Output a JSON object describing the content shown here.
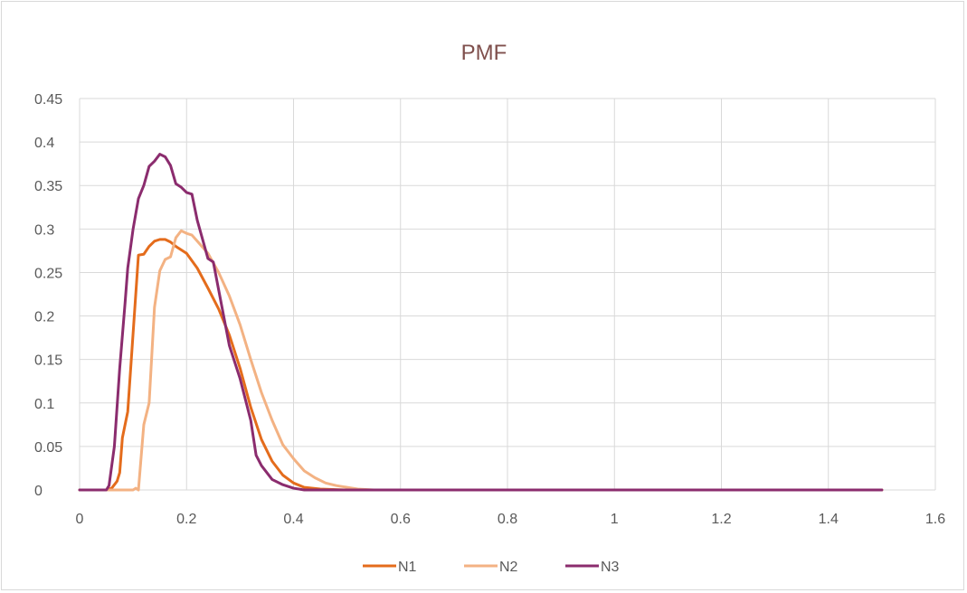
{
  "chart_data": {
    "type": "line",
    "title": "PMF",
    "xlabel": "",
    "ylabel": "",
    "xlim": [
      0,
      1.6
    ],
    "ylim": [
      0,
      0.45
    ],
    "x_ticks": [
      "0",
      "0.2",
      "0.4",
      "0.6",
      "0.8",
      "1",
      "1.2",
      "1.4",
      "1.6"
    ],
    "y_ticks": [
      "0",
      "0.05",
      "0.1",
      "0.15",
      "0.2",
      "0.25",
      "0.3",
      "0.35",
      "0.4",
      "0.45"
    ],
    "grid": true,
    "legend_position": "bottom",
    "series": [
      {
        "name": "N1",
        "color": "#e46c1c",
        "points": [
          [
            0,
            0
          ],
          [
            0.05,
            0
          ],
          [
            0.06,
            0.002
          ],
          [
            0.07,
            0.01
          ],
          [
            0.075,
            0.02
          ],
          [
            0.08,
            0.06
          ],
          [
            0.09,
            0.09
          ],
          [
            0.1,
            0.18
          ],
          [
            0.11,
            0.27
          ],
          [
            0.12,
            0.271
          ],
          [
            0.13,
            0.28
          ],
          [
            0.14,
            0.286
          ],
          [
            0.15,
            0.288
          ],
          [
            0.16,
            0.288
          ],
          [
            0.17,
            0.285
          ],
          [
            0.18,
            0.28
          ],
          [
            0.2,
            0.272
          ],
          [
            0.22,
            0.255
          ],
          [
            0.24,
            0.232
          ],
          [
            0.26,
            0.208
          ],
          [
            0.28,
            0.178
          ],
          [
            0.3,
            0.14
          ],
          [
            0.32,
            0.095
          ],
          [
            0.34,
            0.058
          ],
          [
            0.36,
            0.033
          ],
          [
            0.38,
            0.017
          ],
          [
            0.4,
            0.008
          ],
          [
            0.42,
            0.003
          ],
          [
            0.45,
            0.001
          ],
          [
            0.5,
            0
          ],
          [
            0.6,
            0
          ],
          [
            0.8,
            0
          ],
          [
            1.0,
            0
          ],
          [
            1.2,
            0
          ],
          [
            1.4,
            0
          ],
          [
            1.5,
            0
          ]
        ]
      },
      {
        "name": "N2",
        "color": "#f3b283",
        "points": [
          [
            0,
            0
          ],
          [
            0.1,
            0
          ],
          [
            0.105,
            0.002
          ],
          [
            0.11,
            0
          ],
          [
            0.12,
            0.075
          ],
          [
            0.13,
            0.1
          ],
          [
            0.14,
            0.21
          ],
          [
            0.15,
            0.252
          ],
          [
            0.16,
            0.265
          ],
          [
            0.17,
            0.268
          ],
          [
            0.18,
            0.29
          ],
          [
            0.19,
            0.298
          ],
          [
            0.2,
            0.295
          ],
          [
            0.21,
            0.293
          ],
          [
            0.22,
            0.286
          ],
          [
            0.24,
            0.272
          ],
          [
            0.26,
            0.25
          ],
          [
            0.28,
            0.223
          ],
          [
            0.3,
            0.19
          ],
          [
            0.32,
            0.15
          ],
          [
            0.34,
            0.112
          ],
          [
            0.36,
            0.08
          ],
          [
            0.38,
            0.052
          ],
          [
            0.4,
            0.036
          ],
          [
            0.42,
            0.022
          ],
          [
            0.44,
            0.014
          ],
          [
            0.46,
            0.008
          ],
          [
            0.48,
            0.005
          ],
          [
            0.5,
            0.003
          ],
          [
            0.52,
            0.001
          ],
          [
            0.55,
            0
          ],
          [
            0.6,
            0
          ],
          [
            0.8,
            0
          ],
          [
            1.0,
            0
          ],
          [
            1.2,
            0
          ],
          [
            1.4,
            0
          ],
          [
            1.5,
            0
          ]
        ]
      },
      {
        "name": "N3",
        "color": "#8b2c6e",
        "points": [
          [
            0,
            0
          ],
          [
            0.05,
            0
          ],
          [
            0.055,
            0.005
          ],
          [
            0.065,
            0.05
          ],
          [
            0.075,
            0.14
          ],
          [
            0.085,
            0.215
          ],
          [
            0.09,
            0.255
          ],
          [
            0.1,
            0.3
          ],
          [
            0.11,
            0.335
          ],
          [
            0.12,
            0.35
          ],
          [
            0.13,
            0.372
          ],
          [
            0.14,
            0.378
          ],
          [
            0.15,
            0.386
          ],
          [
            0.16,
            0.383
          ],
          [
            0.17,
            0.373
          ],
          [
            0.18,
            0.352
          ],
          [
            0.19,
            0.348
          ],
          [
            0.2,
            0.342
          ],
          [
            0.21,
            0.34
          ],
          [
            0.22,
            0.31
          ],
          [
            0.24,
            0.266
          ],
          [
            0.25,
            0.262
          ],
          [
            0.26,
            0.23
          ],
          [
            0.28,
            0.166
          ],
          [
            0.3,
            0.128
          ],
          [
            0.32,
            0.08
          ],
          [
            0.33,
            0.04
          ],
          [
            0.34,
            0.028
          ],
          [
            0.36,
            0.012
          ],
          [
            0.38,
            0.006
          ],
          [
            0.4,
            0.002
          ],
          [
            0.42,
            0
          ],
          [
            0.5,
            0
          ],
          [
            0.6,
            0
          ],
          [
            0.8,
            0
          ],
          [
            1.0,
            0
          ],
          [
            1.2,
            0
          ],
          [
            1.4,
            0
          ],
          [
            1.5,
            0
          ]
        ]
      }
    ]
  }
}
